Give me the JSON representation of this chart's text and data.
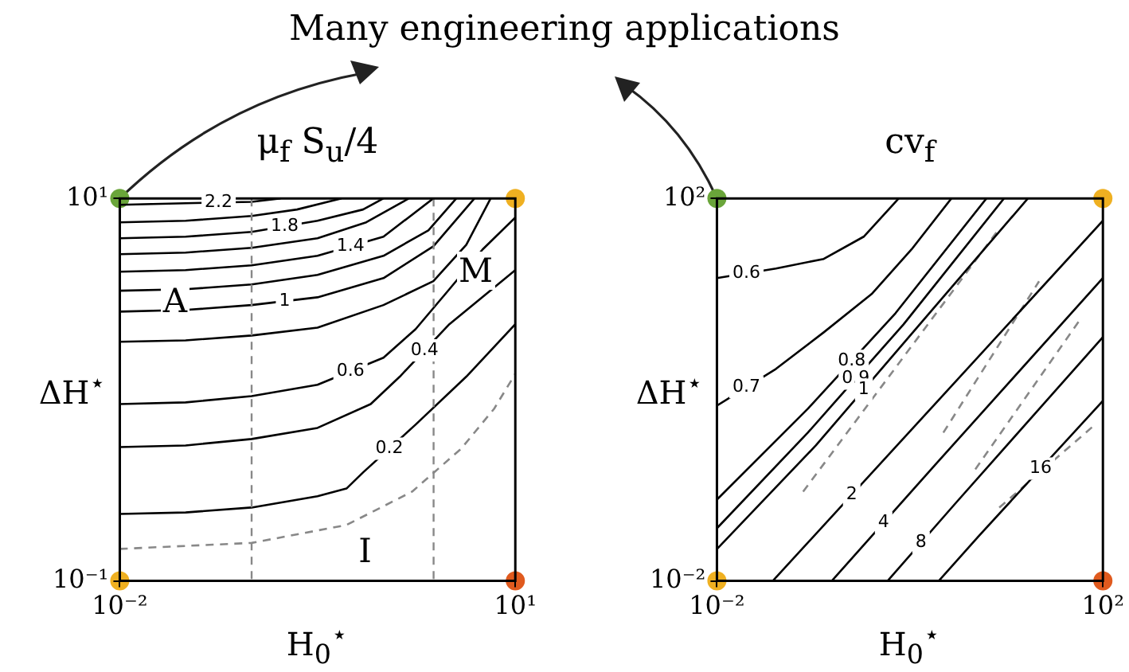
{
  "chart_data": [
    {
      "type": "line",
      "title": "μ$_{f}$ S$_{u}$/4",
      "xlabel": "H$_{0}$$^{⋆}$",
      "ylabel": "ΔH$^{⋆}$",
      "log": "xy",
      "legend": false,
      "marker": "none",
      "line_style": "solid",
      "xlim": [
        0.01,
        10
      ],
      "ylim": [
        0.1,
        10
      ],
      "xticks": [
        {
          "value": 0.01,
          "label": "10⁻²"
        },
        {
          "value": 10,
          "label": "10¹"
        }
      ],
      "yticks": [
        {
          "value": 0.1,
          "label": "10⁻¹"
        },
        {
          "value": 10,
          "label": "10¹"
        }
      ],
      "annotations": [
        "Many engineering applications",
        "A",
        "M",
        "I"
      ],
      "ref_lines": [
        {
          "axis": "x",
          "value": 0.1,
          "color": "#888888",
          "line_style": "dashed"
        },
        {
          "axis": "x",
          "value": 2.4,
          "color": "#888888",
          "line_style": "dashed"
        }
      ],
      "series": [
        {
          "name": "2.2",
          "color": "#000000",
          "x": [
            0.01,
            0.0316,
            0.1,
            0.166
          ],
          "values": [
            9.26,
            9.44,
            9.6,
            10
          ]
        },
        {
          "color": "#000000",
          "x": [
            0.01,
            0.0316,
            0.1,
            0.221,
            0.48
          ],
          "values": [
            7.5,
            7.64,
            8.1,
            8.75,
            10
          ]
        },
        {
          "name": "1.8",
          "color": "#000000",
          "x": [
            0.01,
            0.0316,
            0.1,
            0.316,
            0.7,
            1
          ],
          "values": [
            6.19,
            6.31,
            6.68,
            7.64,
            8.75,
            10
          ]
        },
        {
          "color": "#000000",
          "x": [
            0.01,
            0.0316,
            0.1,
            0.316,
            0.74,
            1.56
          ],
          "values": [
            5.11,
            5.21,
            5.52,
            6.19,
            7.5,
            10
          ]
        },
        {
          "name": "1.4",
          "color": "#000000",
          "x": [
            0.01,
            0.0316,
            0.1,
            0.316,
            1,
            2.39
          ],
          "values": [
            4.14,
            4.22,
            4.47,
            5.01,
            6.31,
            10
          ]
        },
        {
          "color": "#000000",
          "x": [
            0.01,
            0.0316,
            0.1,
            0.316,
            1,
            2.19,
            3.57
          ],
          "values": [
            3.29,
            3.35,
            3.55,
            3.98,
            5.01,
            6.81,
            10
          ]
        },
        {
          "name": "1",
          "color": "#000000",
          "x": [
            0.01,
            0.0316,
            0.1,
            0.316,
            1,
            2.39,
            4.9
          ],
          "values": [
            2.56,
            2.61,
            2.77,
            3.04,
            3.83,
            5.62,
            10
          ]
        },
        {
          "color": "#000000",
          "x": [
            0.01,
            0.0316,
            0.1,
            0.316,
            1,
            2.39,
            4.25,
            6.5
          ],
          "values": [
            1.78,
            1.81,
            1.92,
            2.11,
            2.77,
            3.69,
            5.73,
            10
          ]
        },
        {
          "name": "0.6",
          "color": "#000000",
          "x": [
            0.01,
            0.0316,
            0.1,
            0.316,
            1,
            1.75,
            3.16,
            5.65,
            10
          ],
          "values": [
            0.841,
            0.858,
            0.926,
            1.06,
            1.47,
            2.07,
            3.35,
            5.41,
            7.94
          ]
        },
        {
          "name": "0.4",
          "color": "#000000",
          "x": [
            0.01,
            0.0316,
            0.1,
            0.316,
            0.8,
            1.33,
            3.16,
            10
          ],
          "values": [
            0.501,
            0.511,
            0.552,
            0.631,
            0.841,
            1.17,
            2.2,
            4.22
          ]
        },
        {
          "name": "0.2",
          "color": "#000000",
          "x": [
            0.01,
            0.0316,
            0.1,
            0.316,
            0.524,
            0.7,
            1.75,
            4.25,
            10
          ],
          "values": [
            0.224,
            0.228,
            0.242,
            0.277,
            0.304,
            0.369,
            0.656,
            1.17,
            2.2
          ]
        },
        {
          "color": "#888888",
          "line_style": "dashed",
          "x": [
            0.01,
            0.1,
            0.524,
            1.65,
            3.89,
            6.9,
            10
          ],
          "values": [
            0.147,
            0.158,
            0.196,
            0.293,
            0.492,
            0.794,
            1.21
          ]
        }
      ]
    },
    {
      "type": "line",
      "title": "cv$_{f}$",
      "xlabel": "H$_{0}$$^{⋆}$",
      "ylabel": "ΔH$^{⋆}$",
      "log": "xy",
      "legend": false,
      "marker": "none",
      "line_style": "solid",
      "xlim": [
        0.01,
        100
      ],
      "ylim": [
        0.01,
        100
      ],
      "xticks": [
        {
          "value": 0.01,
          "label": "10⁻²"
        },
        {
          "value": 100,
          "label": "10²"
        }
      ],
      "yticks": [
        {
          "value": 0.01,
          "label": "10⁻²"
        },
        {
          "value": 100,
          "label": "10²"
        }
      ],
      "series": [
        {
          "name": "0.6",
          "color": "#000000",
          "x": [
            0.01,
            0.0409,
            0.128,
            0.332,
            0.766
          ],
          "values": [
            14.7,
            18.5,
            23.3,
            39.8,
            100
          ]
        },
        {
          "name": "0.7",
          "color": "#000000",
          "x": [
            0.01,
            0.0409,
            0.128,
            0.401,
            1.04,
            2.69
          ],
          "values": [
            0.681,
            1.65,
            3.98,
            10,
            29.3,
            100
          ]
        },
        {
          "name": "0.8",
          "color": "#000000",
          "x": [
            0.01,
            0.0875,
            0.71,
            6.21
          ],
          "values": [
            0.0708,
            0.631,
            6.31,
            100
          ]
        },
        {
          "name": "0.9",
          "color": "#000000",
          "x": [
            0.01,
            0.0875,
            0.859,
            9.44
          ],
          "values": [
            0.0355,
            0.355,
            4.82,
            100
          ]
        },
        {
          "name": "1",
          "color": "#000000",
          "x": [
            0.01,
            0.106,
            1.04,
            16.7
          ],
          "values": [
            0.0215,
            0.261,
            3.83,
            100
          ]
        },
        {
          "name": "2",
          "color": "#000000",
          "x": [
            0.0379,
            1.64,
            100
          ],
          "values": [
            0.01,
            0.631,
            58.5
          ]
        },
        {
          "name": "4",
          "color": "#000000",
          "x": [
            0.155,
            1.84,
            100
          ],
          "values": [
            0.01,
            0.165,
            14.7
          ]
        },
        {
          "name": "8",
          "color": "#000000",
          "x": [
            0.587,
            2.9,
            100
          ],
          "values": [
            0.01,
            0.0631,
            3.55
          ]
        },
        {
          "name": "16",
          "color": "#000000",
          "x": [
            1.99,
            5.14,
            100
          ],
          "values": [
            0.01,
            0.0293,
            0.764
          ]
        },
        {
          "color": "#888888",
          "line_style": "dashed",
          "x": [
            0.0782,
            8.43
          ],
          "values": [
            0.0858,
            48.3
          ]
        },
        {
          "color": "#888888",
          "line_style": "dashed",
          "x": [
            2.22,
            21.8
          ],
          "values": [
            0.355,
            13.6
          ]
        },
        {
          "color": "#888888",
          "line_style": "dashed",
          "x": [
            4.76,
            56.5
          ],
          "values": [
            0.147,
            5.21
          ]
        },
        {
          "color": "#888888",
          "line_style": "dashed",
          "x": [
            8.43,
            82.6
          ],
          "values": [
            0.0585,
            0.43
          ]
        }
      ]
    }
  ]
}
